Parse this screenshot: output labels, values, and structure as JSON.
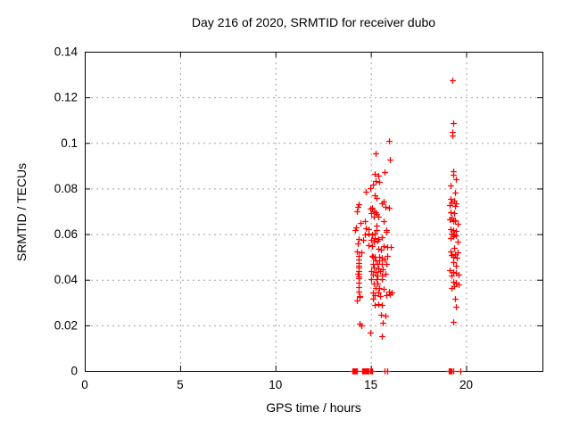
{
  "colors": {
    "marker": "#ff0000",
    "grid": "#a0a0a0",
    "axis": "#000000",
    "background": "#ffffff",
    "text": "#000000"
  },
  "chart_data": {
    "type": "scatter",
    "title": "Day 216 of 2020, SRMTID for receiver dubo",
    "xlabel": "GPS time / hours",
    "ylabel": "SRMTID / TECUs",
    "xlim": [
      0,
      24
    ],
    "ylim": [
      0,
      0.14
    ],
    "xticks": [
      0,
      5,
      10,
      15,
      20
    ],
    "xtick_labels": [
      "0",
      "5",
      "10",
      "15",
      "20"
    ],
    "yticks": [
      0,
      0.02,
      0.04,
      0.06,
      0.08,
      0.1,
      0.12,
      0.14
    ],
    "ytick_labels": [
      "0",
      "0.02",
      "0.04",
      "0.06",
      "0.08",
      "0.1",
      "0.12",
      "0.14"
    ],
    "grid": true,
    "legend": "none",
    "marker": "plus",
    "series_name": "SRMTID",
    "points": [
      [
        15.95,
        0.1008
      ],
      [
        15.25,
        0.0955
      ],
      [
        15.99,
        0.0926
      ],
      [
        15.72,
        0.0873
      ],
      [
        15.21,
        0.0864
      ],
      [
        15.37,
        0.0858
      ],
      [
        15.25,
        0.0834
      ],
      [
        15.44,
        0.0829
      ],
      [
        15.13,
        0.0819
      ],
      [
        14.95,
        0.0803
      ],
      [
        14.75,
        0.0786
      ],
      [
        15.21,
        0.077
      ],
      [
        15.3,
        0.076
      ],
      [
        15.68,
        0.0743
      ],
      [
        15.6,
        0.0734
      ],
      [
        14.36,
        0.073
      ],
      [
        14.33,
        0.0721
      ],
      [
        15.76,
        0.0721
      ],
      [
        15.06,
        0.0717
      ],
      [
        15.94,
        0.0717
      ],
      [
        14.95,
        0.0712
      ],
      [
        15.14,
        0.0701
      ],
      [
        14.28,
        0.0701
      ],
      [
        15.26,
        0.0695
      ],
      [
        15.01,
        0.0691
      ],
      [
        15.29,
        0.0688
      ],
      [
        15.37,
        0.0678
      ],
      [
        15.17,
        0.0675
      ],
      [
        14.67,
        0.0656
      ],
      [
        15.68,
        0.0656
      ],
      [
        14.44,
        0.0649
      ],
      [
        15.29,
        0.0639
      ],
      [
        14.2,
        0.063
      ],
      [
        14.75,
        0.0626
      ],
      [
        14.9,
        0.0623
      ],
      [
        14.17,
        0.0619
      ],
      [
        15.83,
        0.0619
      ],
      [
        15.29,
        0.0617
      ],
      [
        15.83,
        0.061
      ],
      [
        14.86,
        0.0604
      ],
      [
        15.21,
        0.0601
      ],
      [
        15.06,
        0.06
      ],
      [
        14.67,
        0.0597
      ],
      [
        15.57,
        0.0587
      ],
      [
        15.21,
        0.0584
      ],
      [
        15.37,
        0.058
      ],
      [
        14.36,
        0.0578
      ],
      [
        15.01,
        0.0576
      ],
      [
        14.59,
        0.0575
      ],
      [
        15.33,
        0.0572
      ],
      [
        15.17,
        0.0568
      ],
      [
        14.33,
        0.0558
      ],
      [
        14.9,
        0.0552
      ],
      [
        15.06,
        0.0548
      ],
      [
        15.68,
        0.0548
      ],
      [
        15.88,
        0.0545
      ],
      [
        16.03,
        0.0542
      ],
      [
        15.37,
        0.0535
      ],
      [
        15.52,
        0.0532
      ],
      [
        14.28,
        0.0525
      ],
      [
        14.48,
        0.0521
      ],
      [
        15.88,
        0.0506
      ],
      [
        14.36,
        0.0506
      ],
      [
        15.06,
        0.0503
      ],
      [
        15.1,
        0.0501
      ],
      [
        15.21,
        0.0499
      ],
      [
        15.45,
        0.0499
      ],
      [
        15.6,
        0.0497
      ],
      [
        14.36,
        0.0489
      ],
      [
        15.25,
        0.0486
      ],
      [
        15.45,
        0.0486
      ],
      [
        15.7,
        0.0488
      ],
      [
        14.36,
        0.0473
      ],
      [
        15.1,
        0.047
      ],
      [
        15.33,
        0.0468
      ],
      [
        15.56,
        0.047
      ],
      [
        15.79,
        0.047
      ],
      [
        14.36,
        0.0463
      ],
      [
        14.36,
        0.0454
      ],
      [
        15.14,
        0.0454
      ],
      [
        15.37,
        0.0451
      ],
      [
        15.62,
        0.0446
      ],
      [
        14.36,
        0.0437
      ],
      [
        15.02,
        0.0437
      ],
      [
        15.25,
        0.0435
      ],
      [
        15.5,
        0.0437
      ],
      [
        14.36,
        0.0428
      ],
      [
        14.33,
        0.0425
      ],
      [
        15.75,
        0.0425
      ],
      [
        15.1,
        0.0421
      ],
      [
        15.33,
        0.0419
      ],
      [
        15.56,
        0.0417
      ],
      [
        14.38,
        0.0415
      ],
      [
        14.36,
        0.0408
      ],
      [
        15.02,
        0.0402
      ],
      [
        15.29,
        0.0402
      ],
      [
        15.6,
        0.0404
      ],
      [
        14.36,
        0.0388
      ],
      [
        15.33,
        0.0384
      ],
      [
        15.14,
        0.0382
      ],
      [
        14.36,
        0.0369
      ],
      [
        15.45,
        0.0365
      ],
      [
        15.25,
        0.0363
      ],
      [
        15.65,
        0.0361
      ],
      [
        14.36,
        0.0349
      ],
      [
        15.94,
        0.0348
      ],
      [
        15.1,
        0.0344
      ],
      [
        15.37,
        0.0344
      ],
      [
        16.1,
        0.0344
      ],
      [
        16.0,
        0.0335
      ],
      [
        15.21,
        0.0332
      ],
      [
        15.83,
        0.0332
      ],
      [
        14.39,
        0.033
      ],
      [
        15.5,
        0.033
      ],
      [
        14.39,
        0.0323
      ],
      [
        15.1,
        0.0317
      ],
      [
        14.28,
        0.031
      ],
      [
        15.37,
        0.0293
      ],
      [
        15.21,
        0.029
      ],
      [
        15.6,
        0.0288
      ],
      [
        15.52,
        0.0248
      ],
      [
        15.76,
        0.0242
      ],
      [
        15.63,
        0.0212
      ],
      [
        14.39,
        0.0208
      ],
      [
        14.51,
        0.02
      ],
      [
        14.95,
        0.0169
      ],
      [
        15.57,
        0.0154
      ],
      [
        19.28,
        0.1275
      ],
      [
        19.33,
        0.1086
      ],
      [
        19.28,
        0.1047
      ],
      [
        19.28,
        0.1034
      ],
      [
        19.3,
        0.0876
      ],
      [
        19.3,
        0.086
      ],
      [
        19.45,
        0.0841
      ],
      [
        19.2,
        0.0812
      ],
      [
        19.41,
        0.0783
      ],
      [
        19.2,
        0.0753
      ],
      [
        19.35,
        0.0745
      ],
      [
        19.45,
        0.0735
      ],
      [
        19.25,
        0.0738
      ],
      [
        19.4,
        0.0722
      ],
      [
        19.15,
        0.0728
      ],
      [
        19.2,
        0.0697
      ],
      [
        19.36,
        0.0692
      ],
      [
        19.25,
        0.0671
      ],
      [
        19.15,
        0.0664
      ],
      [
        19.4,
        0.066
      ],
      [
        19.3,
        0.0656
      ],
      [
        19.56,
        0.0645
      ],
      [
        19.2,
        0.0623
      ],
      [
        19.33,
        0.0618
      ],
      [
        19.45,
        0.0614
      ],
      [
        19.25,
        0.0604
      ],
      [
        19.35,
        0.0598
      ],
      [
        19.45,
        0.0594
      ],
      [
        19.3,
        0.059
      ],
      [
        19.2,
        0.0584
      ],
      [
        19.56,
        0.0567
      ],
      [
        19.36,
        0.0541
      ],
      [
        19.2,
        0.0524
      ],
      [
        19.55,
        0.052
      ],
      [
        19.4,
        0.0512
      ],
      [
        19.25,
        0.0508
      ],
      [
        19.33,
        0.0502
      ],
      [
        19.5,
        0.0495
      ],
      [
        19.33,
        0.0476
      ],
      [
        19.48,
        0.046
      ],
      [
        19.15,
        0.0441
      ],
      [
        19.3,
        0.0435
      ],
      [
        19.45,
        0.043
      ],
      [
        19.6,
        0.0424
      ],
      [
        19.25,
        0.0418
      ],
      [
        19.3,
        0.0392
      ],
      [
        19.45,
        0.0386
      ],
      [
        19.6,
        0.0378
      ],
      [
        19.35,
        0.037
      ],
      [
        19.25,
        0.0365
      ],
      [
        19.41,
        0.0317
      ],
      [
        19.48,
        0.028
      ],
      [
        19.33,
        0.0215
      ],
      [
        14.04,
        0
      ],
      [
        14.08,
        0
      ],
      [
        14.12,
        0
      ],
      [
        14.16,
        0
      ],
      [
        14.2,
        0
      ],
      [
        14.24,
        0
      ],
      [
        14.28,
        0
      ],
      [
        14.55,
        0
      ],
      [
        14.6,
        0
      ],
      [
        14.65,
        0
      ],
      [
        14.7,
        0
      ],
      [
        14.75,
        0
      ],
      [
        14.8,
        0
      ],
      [
        14.85,
        0
      ],
      [
        14.9,
        0
      ],
      [
        14.95,
        0
      ],
      [
        15.0,
        0
      ],
      [
        15.05,
        0
      ],
      [
        15.71,
        0
      ],
      [
        15.84,
        0
      ],
      [
        19.1,
        0
      ],
      [
        19.15,
        0
      ],
      [
        19.2,
        0
      ],
      [
        19.25,
        0
      ],
      [
        19.3,
        0
      ],
      [
        19.7,
        0
      ]
    ]
  }
}
